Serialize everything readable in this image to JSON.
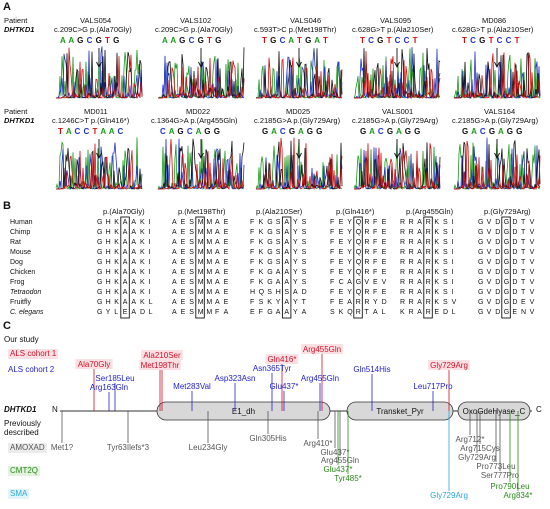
{
  "panelA": {
    "letter": "A",
    "patient_label": "Patient",
    "gene_label": "DHTKD1",
    "row1": [
      {
        "patient": "VALS054",
        "variant": "c.209C>G p.(Ala70Gly)",
        "seq": "A A G C G T G"
      },
      {
        "patient": "VALS102",
        "variant": "c.209C>G p.(Ala70Gly)",
        "seq": "A A G C G T G"
      },
      {
        "patient": "VALS046",
        "variant": "c.593T>C p.(Met198Thr)",
        "seq": "T G C A T G A T"
      },
      {
        "patient": "VALS095",
        "variant": "c.628G>T p.(Ala210Ser)",
        "seq": "T C G T C C T"
      },
      {
        "patient": "MD086",
        "variant": "c.628G>T p.(Ala210Ser)",
        "seq": "T C G T C C T"
      }
    ],
    "row2": [
      {
        "patient": "MD011",
        "variant": "c.1246C>T p.(Gln416*)",
        "seq": "T A C C T A A C"
      },
      {
        "patient": "MD022",
        "variant": "c.1364G>A p.(Arg455Gln)",
        "seq": "C A G C A G G"
      },
      {
        "patient": "MD025",
        "variant": "c.2185G>A p.(Gly729Arg)",
        "seq": "G A C G A G G"
      },
      {
        "patient": "VALS001",
        "variant": "c.2185G>A p.(Gly729Arg)",
        "seq": "G A C G A G G"
      },
      {
        "patient": "VALS164",
        "variant": "c.2185G>A p.(Gly729Arg)",
        "seq": "G A C G A G G"
      }
    ]
  },
  "panelB": {
    "letter": "B",
    "headers": [
      "p.(Ala70Gly)",
      "p.(Met198Thr)",
      "p.(Ala210Ser)",
      "p.(Gln416*)",
      "p.(Arg455Gln)",
      "p.(Gly729Arg)"
    ],
    "species": [
      {
        "name": "Human",
        "seq": [
          "G H K A A K I",
          "A E S M M A E",
          "F K G S A Y S",
          "F E Y Q R F E",
          "R R A R K S I",
          "G V D G D T V"
        ]
      },
      {
        "name": "Chimp",
        "seq": [
          "G H K A A K I",
          "A E S M M A E",
          "F K G S A Y S",
          "F E Y Q R F E",
          "R R A R K S I",
          "G V D G D T V"
        ]
      },
      {
        "name": "Rat",
        "seq": [
          "G H K A A K I",
          "A E S M M A E",
          "F K G S A Y S",
          "F E Y Q R F E",
          "R R A R K S I",
          "G V D G D T V"
        ]
      },
      {
        "name": "Mouse",
        "seq": [
          "G H K A A K I",
          "A E S M M A E",
          "F K G S A Y S",
          "F E Y Q R F E",
          "R R A R K S I",
          "G V D G D T V"
        ]
      },
      {
        "name": "Dog",
        "seq": [
          "G H K A A K I",
          "A E S M M A E",
          "F K G S A Y S",
          "F E Y Q R F E",
          "R R A R K S I",
          "G V D G D T V"
        ]
      },
      {
        "name": "Chicken",
        "seq": [
          "G H K A A K I",
          "A E S M M A E",
          "F K G A A Y S",
          "F E Y Q R F E",
          "R R A R K S I",
          "G V D G D T V"
        ]
      },
      {
        "name": "Frog",
        "seq": [
          "G H K A A K I",
          "A E S M M A E",
          "F K G A A Y S",
          "F C A G V E V",
          "R R A R K S I",
          "G V D G D T V"
        ]
      },
      {
        "name": "Tetraodon",
        "seq": [
          "G H K A A K I",
          "A E S M M A E",
          "H Q S H S A D",
          "F E Y Q R F E",
          "R R A R K S I",
          "G V D G D T V"
        ]
      },
      {
        "name": "Fruitfly",
        "seq": [
          "G H K A A K L",
          "A E S M M A E",
          "F S K Y A Y T",
          "F E A R R Y D",
          "R R A R K S V",
          "G V D G D E V"
        ]
      },
      {
        "name": "C. elegans",
        "seq": [
          "G Y L E A D L",
          "A E S M M F A",
          "E F G A A Y A",
          "S K Q R T A L",
          "K R A R E D L",
          "G V D G E N V"
        ]
      }
    ]
  },
  "panelC": {
    "letter": "C",
    "our_study": "Our study",
    "cohort1": "ALS cohort 1",
    "cohort2": "ALS cohort 2",
    "gene": "DHTKD1",
    "n_term": "N",
    "c_term": "C",
    "previously": "Previously",
    "described": "described",
    "amoxad": "AMOXAD",
    "cmt2q": "CMT2Q",
    "sma": "SMA",
    "domains": [
      "E1_dh",
      "Transket_Pyr",
      "OxoGdeHyase_C"
    ],
    "cohort1_variants": [
      "Ala70Gly",
      "Ala210Ser",
      "Met198Thr",
      "Gln416*",
      "Arg455Gln",
      "Gly729Arg"
    ],
    "cohort2_variants": [
      "Ser185Leu",
      "Arg163Gln",
      "Met283Val",
      "Asp323Asn",
      "Asn365Tyr",
      "Glu437*",
      "Arg455Gln",
      "Gln514His",
      "Leu717Pro"
    ],
    "amoxad_variants": [
      "Met1?",
      "Tyr63Ilefs*3",
      "Leu234Gly",
      "Gln305His",
      "Arg410*",
      "Glu437*",
      "Arg455Gln",
      "Arg712*",
      "Arg715Cys",
      "Gly729Arg",
      "Pro773Leu",
      "Ser777Pro"
    ],
    "cmt2q_variants": [
      "Glu437*",
      "Tyr485*",
      "Pro790Leu",
      "Arg834*"
    ],
    "sma_variants": [
      "Gly729Arg"
    ],
    "colors": {
      "cohort1": "#d0112b",
      "cohort2": "#2222cc",
      "amoxad": "#555555",
      "cmt2q": "#2a8a1a",
      "sma": "#2aa8d8",
      "domain_fill": "#d8d8d8"
    }
  }
}
